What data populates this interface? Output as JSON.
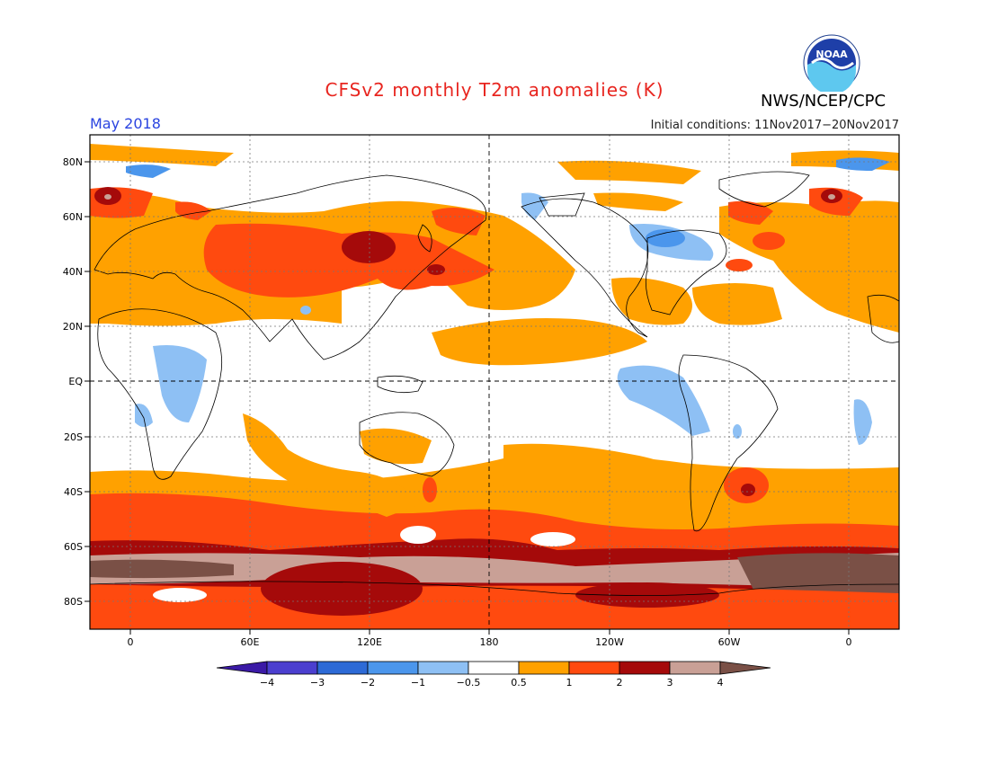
{
  "title": "CFSv2 monthly T2m anomalies (K)",
  "org": "NWS/NCEP/CPC",
  "logo_text": "NOAA",
  "month": "May 2018",
  "initial_conditions": "Initial conditions: 11Nov2017−20Nov2017",
  "lat_ticks": [
    "80N",
    "60N",
    "40N",
    "20N",
    "EQ",
    "20S",
    "40S",
    "60S",
    "80S"
  ],
  "lon_ticks": [
    "0",
    "60E",
    "120E",
    "180",
    "120W",
    "60W",
    "0"
  ],
  "colorbar": {
    "labels": [
      "−4",
      "−3",
      "−2",
      "−1",
      "−0.5",
      "0.5",
      "1",
      "2",
      "3",
      "4"
    ],
    "colors": [
      "#3b1aa6",
      "#4b3fcf",
      "#2d6ad6",
      "#4b96ec",
      "#8ec0f4",
      "#ffffff",
      "#ffa100",
      "#ff4a0f",
      "#a50a0a",
      "#c9a096",
      "#7a5046"
    ]
  }
}
